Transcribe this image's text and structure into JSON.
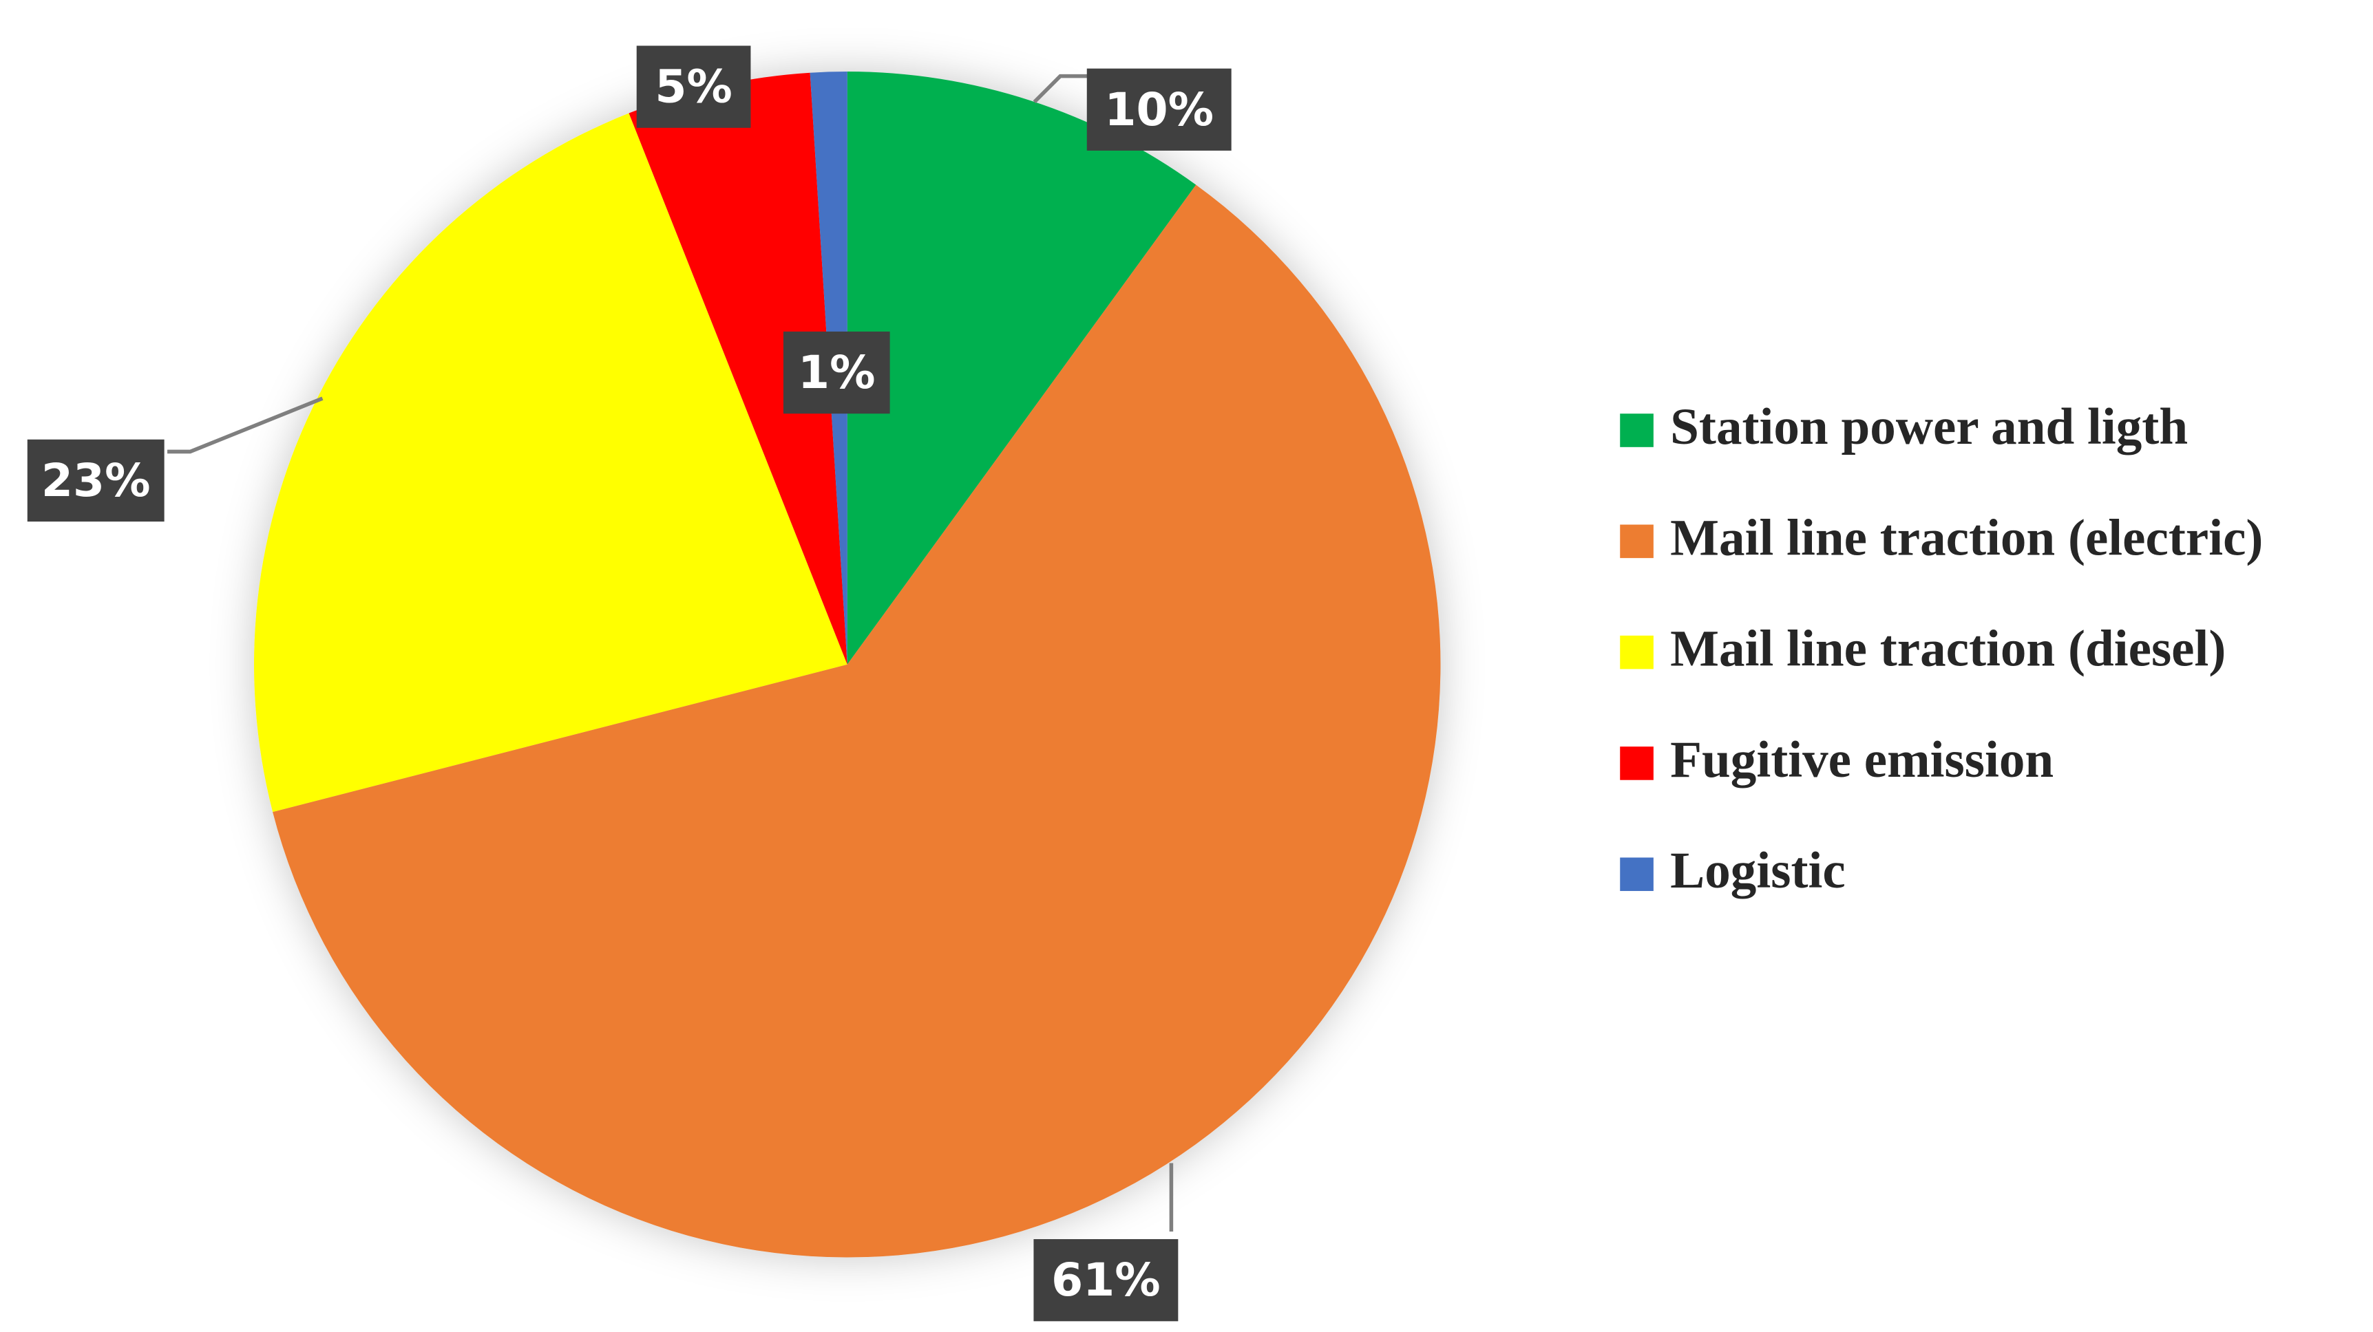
{
  "chart_data": {
    "type": "pie",
    "categories": [
      "Station power and ligth",
      "Mail line traction (electric)",
      "Mail line traction (diesel)",
      "Fugitive emission",
      "Logistic"
    ],
    "values": [
      10,
      61,
      23,
      5,
      1
    ],
    "value_labels": [
      "10%",
      "61%",
      "23%",
      "5%",
      "1%"
    ],
    "colors": [
      "#00b050",
      "#ed7d31",
      "#ffff00",
      "#ff0000",
      "#4472c4"
    ],
    "legend": "right"
  }
}
